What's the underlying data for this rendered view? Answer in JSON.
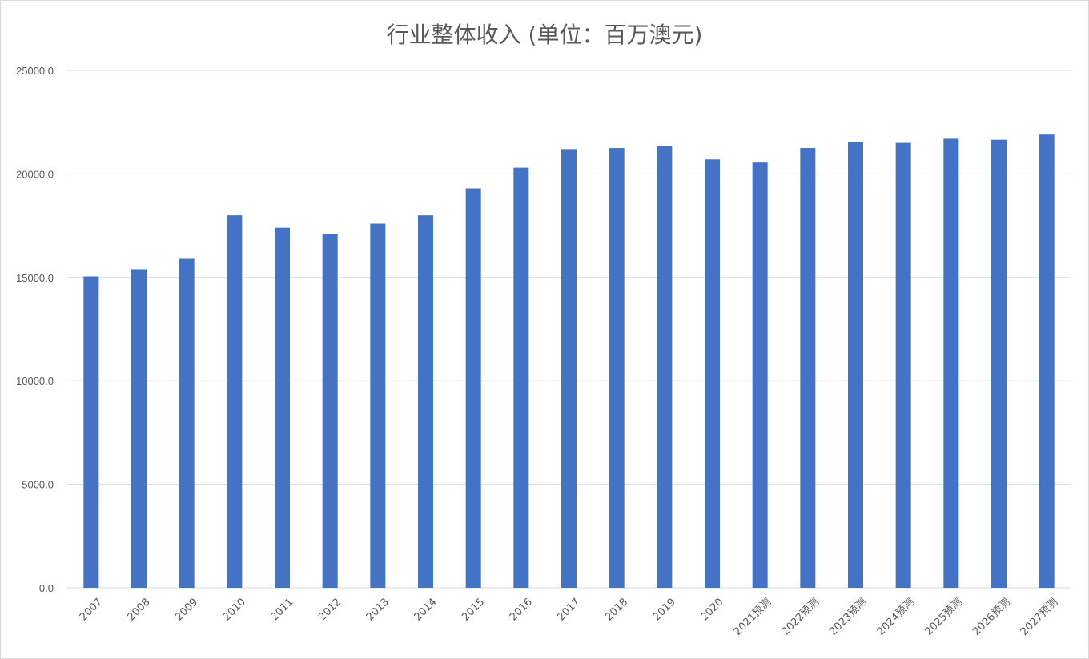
{
  "chart_data": {
    "type": "bar",
    "title": "行业整体收入 (单位：百万澳元)",
    "categories": [
      "2007",
      "2008",
      "2009",
      "2010",
      "2011",
      "2012",
      "2013",
      "2014",
      "2015",
      "2016",
      "2017",
      "2018",
      "2019",
      "2020",
      "2021预测",
      "2022预测",
      "2023预测",
      "2024预测",
      "2025预测",
      "2026预测",
      "2027预测"
    ],
    "values": [
      15050,
      15400,
      15900,
      18000,
      17400,
      17100,
      17600,
      18000,
      19300,
      20300,
      21200,
      21250,
      21350,
      20700,
      20550,
      21250,
      21550,
      21500,
      21700,
      21650,
      21900
    ],
    "ylim": [
      0,
      25000
    ],
    "yticks": [
      "0.0",
      "5000.0",
      "10000.0",
      "15000.0",
      "20000.0",
      "25000.0"
    ],
    "ytick_values": [
      0,
      5000,
      10000,
      15000,
      20000,
      25000
    ],
    "grid": true,
    "bar_color": "#4472c4",
    "gridline_color": "#d9d9d9"
  }
}
